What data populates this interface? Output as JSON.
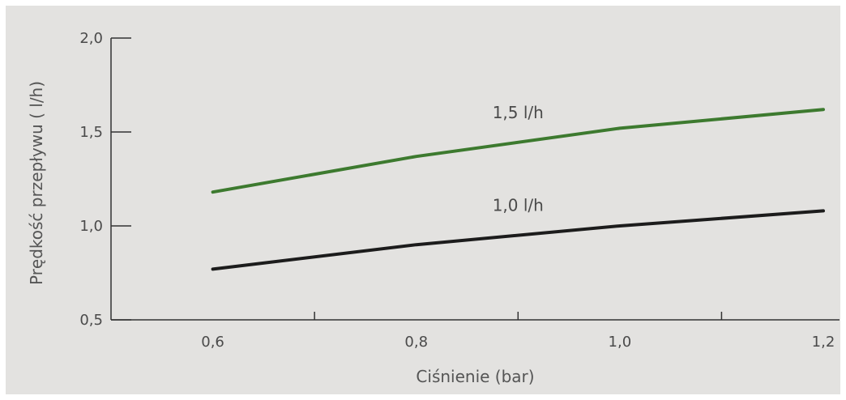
{
  "chart_data": {
    "type": "line",
    "xlabel": "Ciśnienie (bar)",
    "ylabel": "Prędkość przepływu  ( l/h)",
    "x": [
      0.6,
      0.8,
      1.0,
      1.2
    ],
    "x_tick_labels": [
      "0,6",
      "0,8",
      "1,0",
      "1,2"
    ],
    "y_tick_values": [
      0.5,
      1.0,
      1.5,
      2.0
    ],
    "y_tick_labels": [
      "0,5",
      "1,0",
      "1,5",
      "2,0"
    ],
    "xlim": [
      0.5,
      1.2
    ],
    "ylim": [
      0.5,
      2.0
    ],
    "grid": false,
    "series": [
      {
        "name": "1,5 l/h",
        "color": "#3d7a2f",
        "values": [
          1.18,
          1.37,
          1.52,
          1.62
        ]
      },
      {
        "name": "1,0 l/h",
        "color": "#1c1c1c",
        "values": [
          0.77,
          0.9,
          1.0,
          1.08
        ]
      }
    ],
    "colors": {
      "background": "#e3e2e0",
      "axis": "#333333"
    }
  }
}
